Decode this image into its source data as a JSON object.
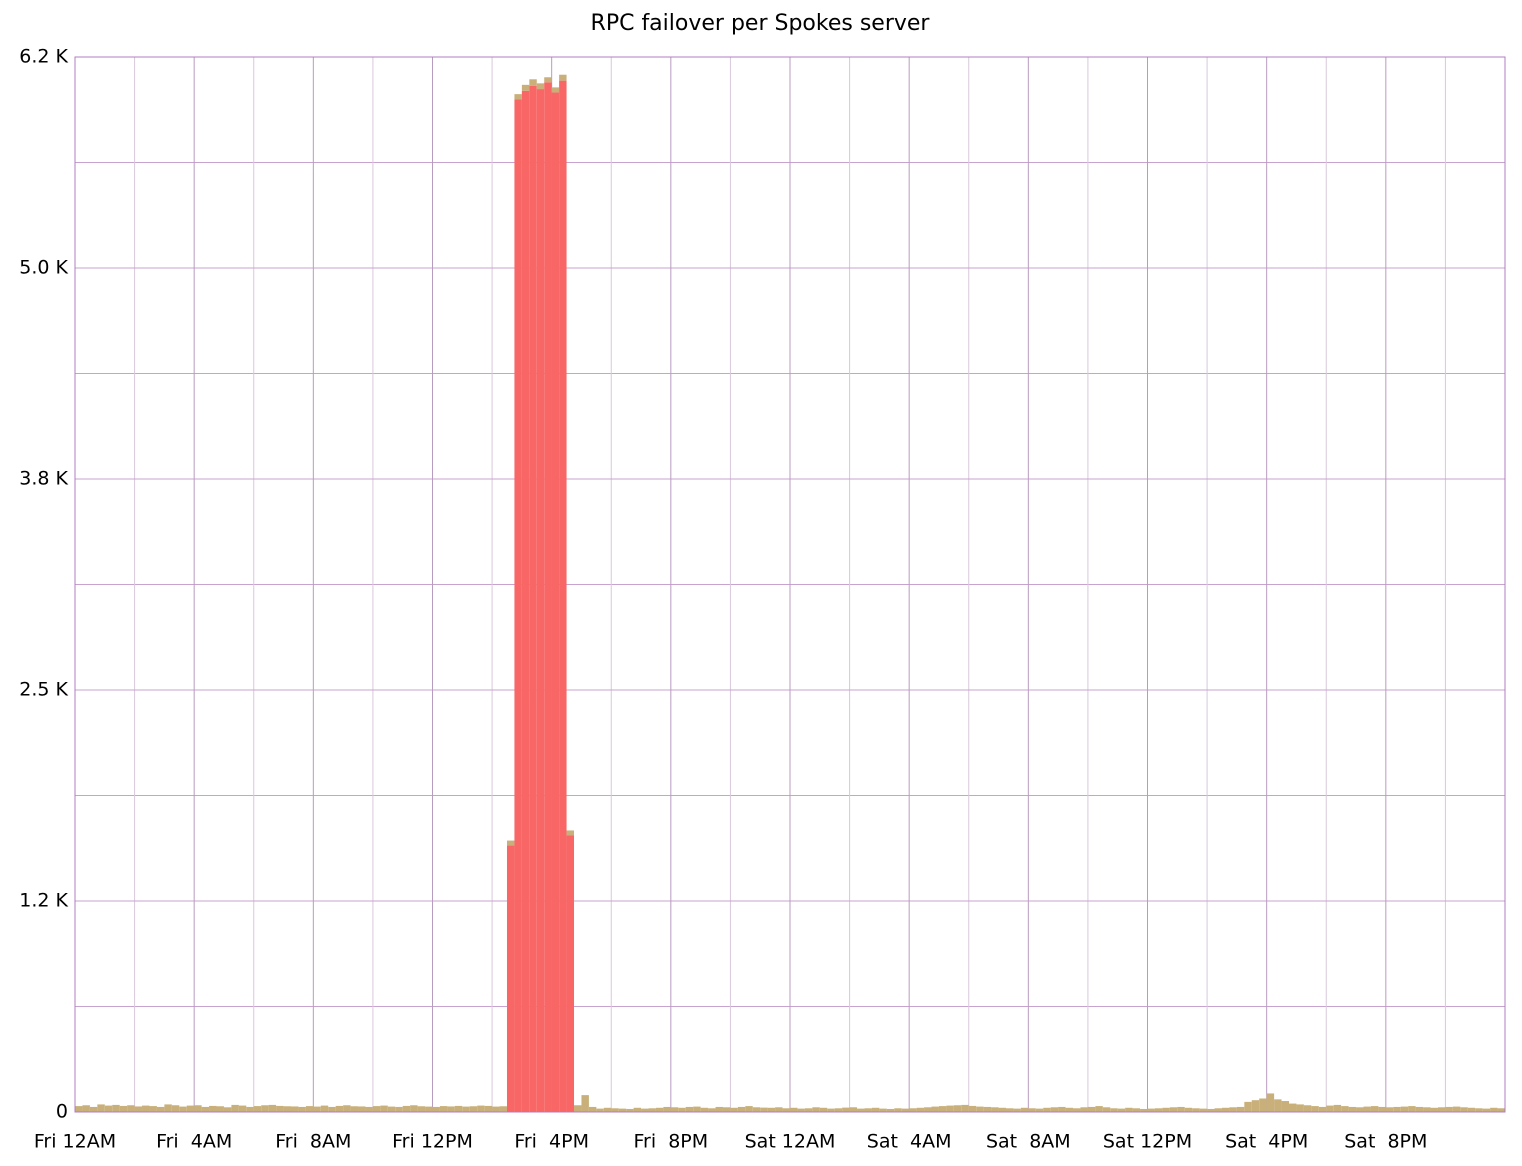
{
  "chart_data": {
    "type": "bar",
    "stacked": true,
    "title": "RPC failover per Spokes server",
    "xlim": [
      0,
      48
    ],
    "xticks": [
      {
        "value": 0,
        "label": "Fri 12AM"
      },
      {
        "value": 4,
        "label": "Fri  4AM"
      },
      {
        "value": 8,
        "label": "Fri  8AM"
      },
      {
        "value": 12,
        "label": "Fri 12PM"
      },
      {
        "value": 16,
        "label": "Fri  4PM"
      },
      {
        "value": 20,
        "label": "Fri  8PM"
      },
      {
        "value": 24,
        "label": "Sat 12AM"
      },
      {
        "value": 28,
        "label": "Sat  4AM"
      },
      {
        "value": 32,
        "label": "Sat  8AM"
      },
      {
        "value": 36,
        "label": "Sat 12PM"
      },
      {
        "value": 40,
        "label": "Sat  4PM"
      },
      {
        "value": 44,
        "label": "Sat  8PM"
      }
    ],
    "minor_xticks": [
      2,
      6,
      10,
      14,
      18,
      22,
      26,
      30,
      34,
      38,
      42,
      46
    ],
    "ylim": [
      0,
      6250
    ],
    "yticks": [
      0,
      {
        "value": 1250,
        "label": "1.2 K"
      },
      {
        "value": 2500,
        "label": "2.5 K"
      },
      {
        "value": 3750,
        "label": "3.8 K"
      },
      {
        "value": 5000,
        "label": "5.0 K"
      },
      {
        "value": 6250,
        "label": "6.2 K"
      }
    ],
    "minor_yticks": [
      625,
      1875,
      3125,
      4375,
      5625
    ],
    "grid": true,
    "grid_color": "#c9a3cf",
    "frame_color": "#b07cc0",
    "bar_width": 0.25,
    "x": [
      0,
      0.25,
      0.5,
      0.75,
      1,
      1.25,
      1.5,
      1.75,
      2,
      2.25,
      2.5,
      2.75,
      3,
      3.25,
      3.5,
      3.75,
      4,
      4.25,
      4.5,
      4.75,
      5,
      5.25,
      5.5,
      5.75,
      6,
      6.25,
      6.5,
      6.75,
      7,
      7.25,
      7.5,
      7.75,
      8,
      8.25,
      8.5,
      8.75,
      9,
      9.25,
      9.5,
      9.75,
      10,
      10.25,
      10.5,
      10.75,
      11,
      11.25,
      11.5,
      11.75,
      12,
      12.25,
      12.5,
      12.75,
      13,
      13.25,
      13.5,
      13.75,
      14,
      14.25,
      14.5,
      14.75,
      15,
      15.25,
      15.5,
      15.75,
      16,
      16.25,
      16.5,
      16.75,
      17,
      17.25,
      17.5,
      17.75,
      18,
      18.25,
      18.5,
      18.75,
      19,
      19.25,
      19.5,
      19.75,
      20,
      20.25,
      20.5,
      20.75,
      21,
      21.25,
      21.5,
      21.75,
      22,
      22.25,
      22.5,
      22.75,
      23,
      23.25,
      23.5,
      23.75,
      24,
      24.25,
      24.5,
      24.75,
      25,
      25.25,
      25.5,
      25.75,
      26,
      26.25,
      26.5,
      26.75,
      27,
      27.25,
      27.5,
      27.75,
      28,
      28.25,
      28.5,
      28.75,
      29,
      29.25,
      29.5,
      29.75,
      30,
      30.25,
      30.5,
      30.75,
      31,
      31.25,
      31.5,
      31.75,
      32,
      32.25,
      32.5,
      32.75,
      33,
      33.25,
      33.5,
      33.75,
      34,
      34.25,
      34.5,
      34.75,
      35,
      35.25,
      35.5,
      35.75,
      36,
      36.25,
      36.5,
      36.75,
      37,
      37.25,
      37.5,
      37.75,
      38,
      38.25,
      38.5,
      38.75,
      39,
      39.25,
      39.5,
      39.75,
      40,
      40.25,
      40.5,
      40.75,
      41,
      41.25,
      41.5,
      41.75,
      42,
      42.25,
      42.5,
      42.75,
      43,
      43.25,
      43.5,
      43.75,
      44,
      44.25,
      44.5,
      44.75,
      45,
      45.25,
      45.5,
      45.75,
      46,
      46.25,
      46.5,
      46.75,
      47,
      47.25,
      47.5,
      47.75
    ],
    "series": [
      {
        "color": "#f86666",
        "values": [
          0,
          0,
          0,
          0,
          0,
          0,
          0,
          0,
          0,
          0,
          0,
          0,
          0,
          0,
          0,
          0,
          0,
          0,
          0,
          0,
          0,
          0,
          0,
          0,
          0,
          0,
          0,
          0,
          0,
          0,
          0,
          0,
          0,
          0,
          0,
          0,
          0,
          0,
          0,
          0,
          0,
          0,
          0,
          0,
          0,
          0,
          0,
          0,
          0,
          0,
          0,
          0,
          0,
          0,
          0,
          0,
          0,
          0,
          1580,
          6000,
          6050,
          6080,
          6060,
          6100,
          6040,
          6110,
          1640,
          0,
          0,
          0,
          0,
          0,
          0,
          0,
          0,
          0,
          0,
          0,
          0,
          0,
          0,
          0,
          0,
          0,
          0,
          0,
          0,
          0,
          0,
          0,
          0,
          0,
          0,
          0,
          0,
          0,
          0,
          0,
          0,
          0,
          0,
          0,
          0,
          0,
          0,
          0,
          0,
          0,
          0,
          0,
          0,
          0,
          0,
          0,
          0,
          0,
          0,
          0,
          0,
          0,
          0,
          0,
          0,
          0,
          0,
          0,
          0,
          0,
          0,
          0,
          0,
          0,
          0,
          0,
          0,
          0,
          0,
          0,
          0,
          0,
          0,
          0,
          0,
          0,
          0,
          0,
          0,
          0,
          0,
          0,
          0,
          0,
          0,
          0,
          0,
          0,
          0,
          0,
          0,
          0,
          0,
          0,
          0,
          0,
          0,
          0,
          0,
          0,
          0,
          0,
          0,
          0,
          0,
          0,
          0,
          0,
          0,
          0,
          0,
          0,
          0,
          0,
          0,
          0,
          0,
          0,
          0,
          0,
          0,
          0,
          0,
          0
        ]
      },
      {
        "color": "#c9b07a",
        "values": [
          35,
          40,
          30,
          45,
          38,
          42,
          36,
          40,
          33,
          38,
          35,
          30,
          45,
          40,
          32,
          38,
          40,
          30,
          36,
          34,
          28,
          42,
          38,
          30,
          35,
          40,
          42,
          36,
          34,
          33,
          30,
          35,
          32,
          38,
          30,
          36,
          40,
          34,
          33,
          30,
          35,
          38,
          32,
          30,
          36,
          40,
          34,
          32,
          30,
          35,
          33,
          36,
          32,
          34,
          38,
          36,
          32,
          34,
          28,
          30,
          35,
          38,
          34,
          30,
          30,
          35,
          28,
          40,
          100,
          30,
          20,
          25,
          22,
          20,
          18,
          25,
          20,
          22,
          25,
          30,
          28,
          25,
          30,
          32,
          25,
          22,
          30,
          28,
          25,
          30,
          35,
          28,
          26,
          25,
          28,
          22,
          25,
          20,
          22,
          28,
          25,
          20,
          22,
          26,
          28,
          20,
          22,
          25,
          20,
          18,
          22,
          20,
          22,
          25,
          28,
          32,
          35,
          38,
          40,
          42,
          36,
          32,
          30,
          28,
          25,
          22,
          20,
          25,
          22,
          20,
          25,
          28,
          30,
          25,
          22,
          28,
          30,
          35,
          28,
          22,
          20,
          25,
          22,
          18,
          20,
          22,
          25,
          28,
          30,
          25,
          22,
          20,
          18,
          22,
          25,
          28,
          30,
          60,
          70,
          80,
          110,
          75,
          65,
          50,
          45,
          40,
          35,
          30,
          38,
          42,
          35,
          30,
          28,
          32,
          35,
          30,
          28,
          30,
          32,
          35,
          30,
          28,
          25,
          28,
          30,
          32,
          28,
          25,
          22,
          20,
          25,
          22
        ]
      }
    ]
  }
}
